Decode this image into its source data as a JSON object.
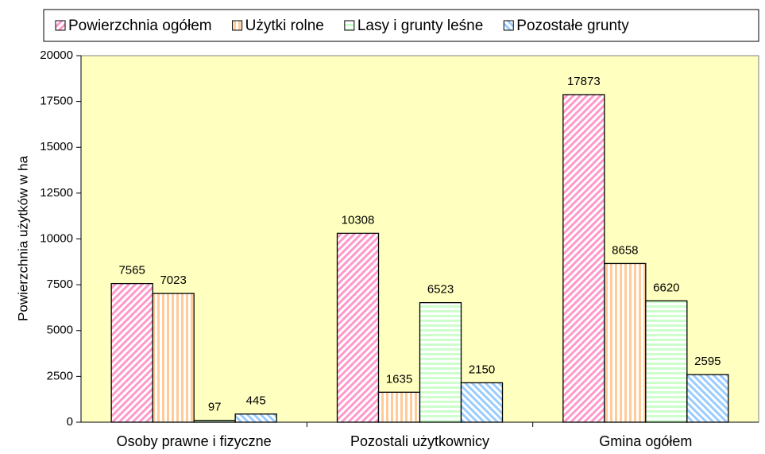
{
  "chart_data": {
    "type": "bar",
    "y_label": "Powierzchnia użytków w ha",
    "categories": [
      "Osoby prawne i fizyczne",
      "Pozostali użytkownicy",
      "Gmina ogółem"
    ],
    "series": [
      {
        "name": "Powierzchnia ogółem",
        "color": "#ff99cc",
        "values": [
          7565,
          10308,
          17873
        ]
      },
      {
        "name": "Użytki rolne",
        "color": "#ffcc99",
        "values": [
          7023,
          1635,
          8658
        ]
      },
      {
        "name": "Lasy i grunty leśne",
        "color": "#ccffcc",
        "values": [
          97,
          6523,
          6620
        ]
      },
      {
        "name": "Pozostałe grunty",
        "color": "#99ccff",
        "values": [
          445,
          2150,
          2595
        ]
      }
    ],
    "ylim": [
      0,
      20000
    ],
    "yticks": [
      0,
      2500,
      5000,
      7500,
      10000,
      12500,
      15000,
      17500,
      20000
    ],
    "grid": false,
    "legend": "top",
    "plot_background": "#ffffc0"
  }
}
